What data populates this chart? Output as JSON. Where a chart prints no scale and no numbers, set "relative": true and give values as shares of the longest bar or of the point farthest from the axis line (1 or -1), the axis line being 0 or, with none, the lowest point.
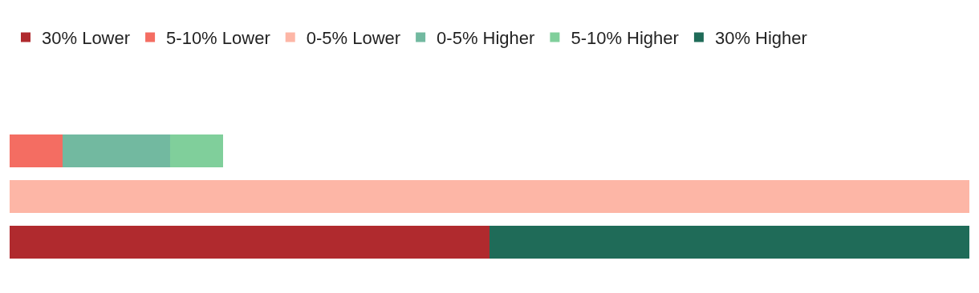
{
  "chart_data": {
    "type": "bar",
    "orientation": "horizontal",
    "stacked": true,
    "relative": true,
    "legend": "top",
    "categories": [
      null,
      null,
      null
    ],
    "series": [
      {
        "name": "30% Lower",
        "color": "#b02a2e",
        "values": [
          null,
          null,
          0.5
        ]
      },
      {
        "name": "5-10% Lower",
        "color": "#f46d62",
        "values": [
          0.055,
          null,
          null
        ]
      },
      {
        "name": "0-5% Lower",
        "color": "#fdb6a6",
        "values": [
          null,
          1,
          null
        ]
      },
      {
        "name": "0-5% Higher",
        "color": "#72b9a0",
        "values": [
          0.112,
          null,
          null
        ]
      },
      {
        "name": "5-10% Higher",
        "color": "#80cf9b",
        "values": [
          0.055,
          null,
          null
        ]
      },
      {
        "name": "30% Higher",
        "color": "#1f6b58",
        "values": [
          null,
          null,
          0.5
        ]
      }
    ]
  }
}
